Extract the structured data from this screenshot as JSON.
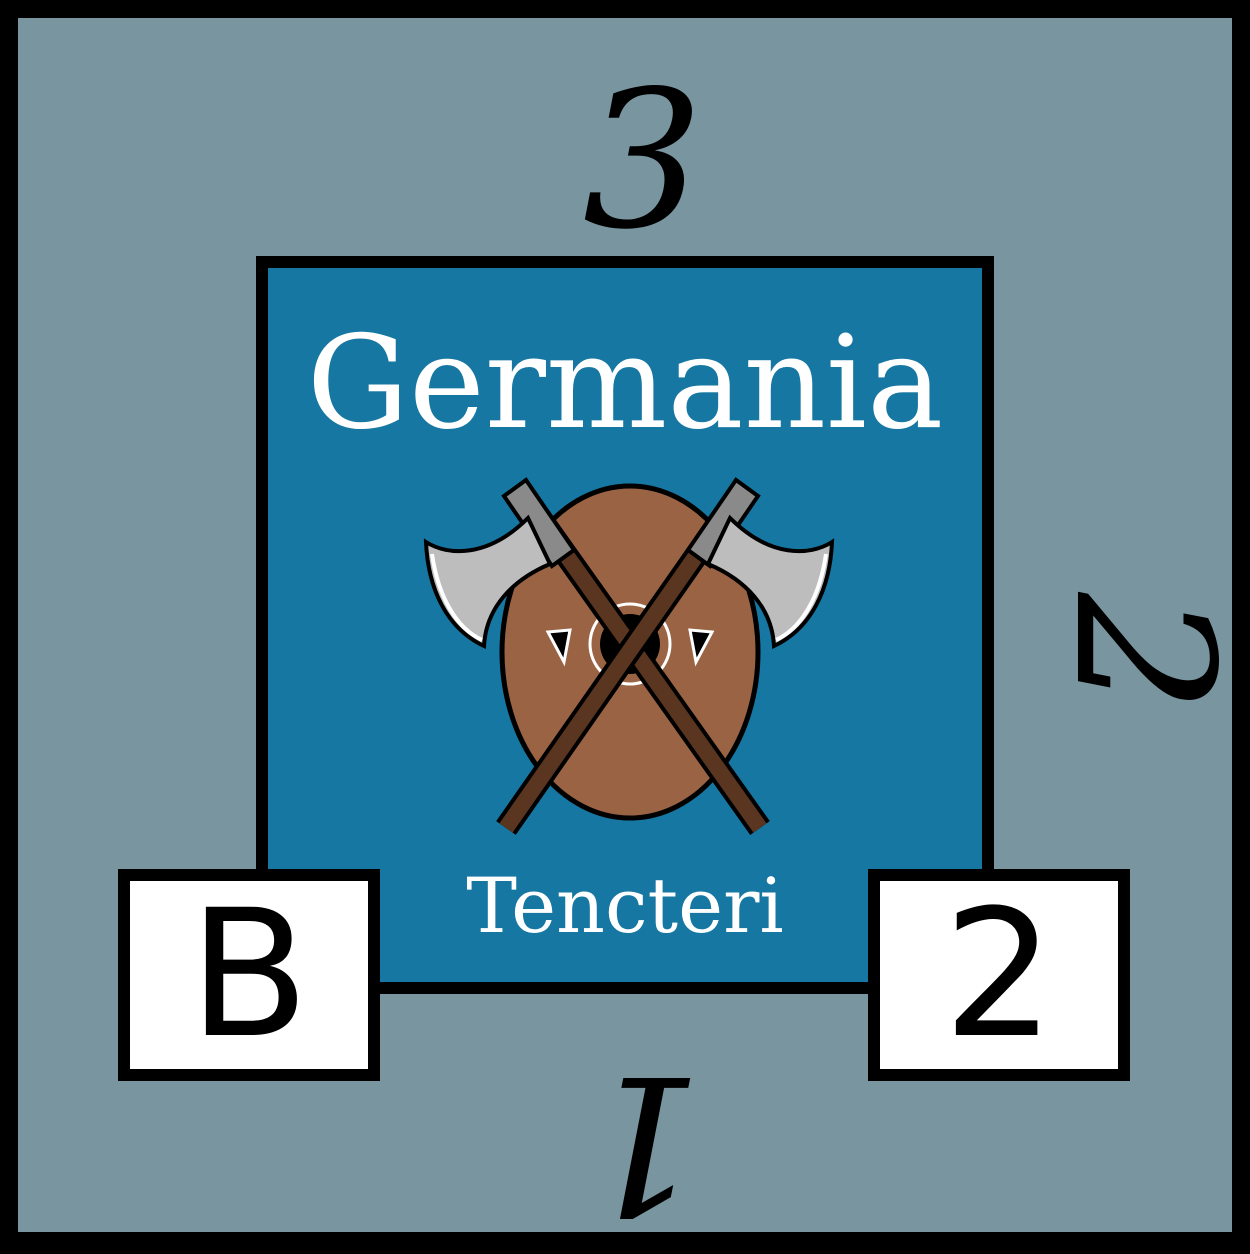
{
  "counter": {
    "background_color": "#7895a0",
    "panel_color": "#1677a2",
    "edge_numbers": {
      "top": "3",
      "right": "2",
      "bottom": "1"
    },
    "title": "Germania",
    "subtitle": "Tencteri",
    "left_box": "B",
    "right_box": "2",
    "emblem": {
      "icon": "crossed-axes-shield-icon",
      "shield_color": "#9a6444",
      "haft_color": "#5a3520",
      "blade_color": "#bdbdbd"
    }
  }
}
